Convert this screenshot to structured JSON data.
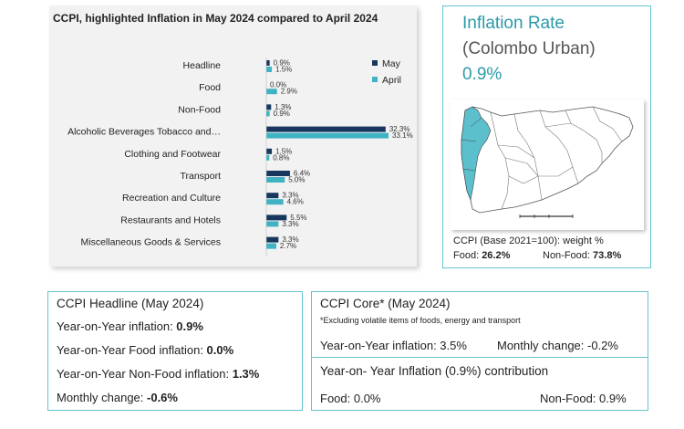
{
  "chart_panel": {
    "title": "CCPI, highlighted Inflation in May 2024 compared to April 2024"
  },
  "chart_data": {
    "type": "bar",
    "orientation": "horizontal",
    "title": "CCPI, highlighted Inflation in May 2024 compared to April 2024",
    "categories": [
      "Headline",
      "Food",
      "Non-Food",
      "Alcoholic Beverages Tobacco and…",
      "Clothing and Footwear",
      "Transport",
      "Recreation and Culture",
      "Restaurants and Hotels",
      "Miscellaneous Goods & Services"
    ],
    "series": [
      {
        "name": "May",
        "values": [
          0.9,
          0.0,
          1.3,
          32.3,
          1.5,
          6.4,
          3.3,
          5.5,
          3.3
        ],
        "labels": [
          "0.9%",
          "0.0%",
          "1.3%",
          "32.3%",
          "1.5%",
          "6.4%",
          "3.3%",
          "5.5%",
          "3.3%"
        ]
      },
      {
        "name": "April",
        "values": [
          1.5,
          2.9,
          0.9,
          33.1,
          0.8,
          5.0,
          4.6,
          3.3,
          2.7
        ],
        "labels": [
          "1.5%",
          "2.9%",
          "0.9%",
          "33.1%",
          "0.8%",
          "5.0%",
          "4.6%",
          "3.3%",
          "2.7%"
        ]
      }
    ],
    "xlim": [
      0,
      34
    ],
    "legend": "top-right",
    "grid": false,
    "colors": {
      "May": "#17375e",
      "April": "#3fb3c4"
    }
  },
  "inflation_rate": {
    "title": "Inflation Rate",
    "subtitle": "(Colombo Urban)",
    "value": "0.9%"
  },
  "weights": {
    "title": "CCPI (Base 2021=100): weight %",
    "food_label": "Food: ",
    "food_value": "26.2%",
    "nonfood_label": "Non-Food: ",
    "nonfood_value": "73.8%"
  },
  "headline": {
    "title": "CCPI Headline (May 2024)",
    "yoy_label": "Year-on-Year inflation: ",
    "yoy_value": "0.9%",
    "food_label": "Year-on-Year Food inflation: ",
    "food_value": "0.0%",
    "nonfood_label": "Year-on-Year Non-Food inflation: ",
    "nonfood_value": "1.3%",
    "monthly_label": "Monthly change: ",
    "monthly_value": "-0.6%"
  },
  "core": {
    "title": "CCPI Core* (May 2024)",
    "note": "*Excluding volatile items of foods, energy and transport",
    "yoy": "Year-on-Year inflation: 3.5%",
    "monthly": "Monthly change:  -0.2%"
  },
  "contribution": {
    "title": "Year-on- Year Inflation (0.9%) contribution",
    "food": "Food: 0.0%",
    "nonfood": "Non-Food: 0.9%"
  },
  "colors": {
    "accent": "#2b9aa8",
    "border": "#66c2cc",
    "map_highlight": "#5bbfcc"
  }
}
